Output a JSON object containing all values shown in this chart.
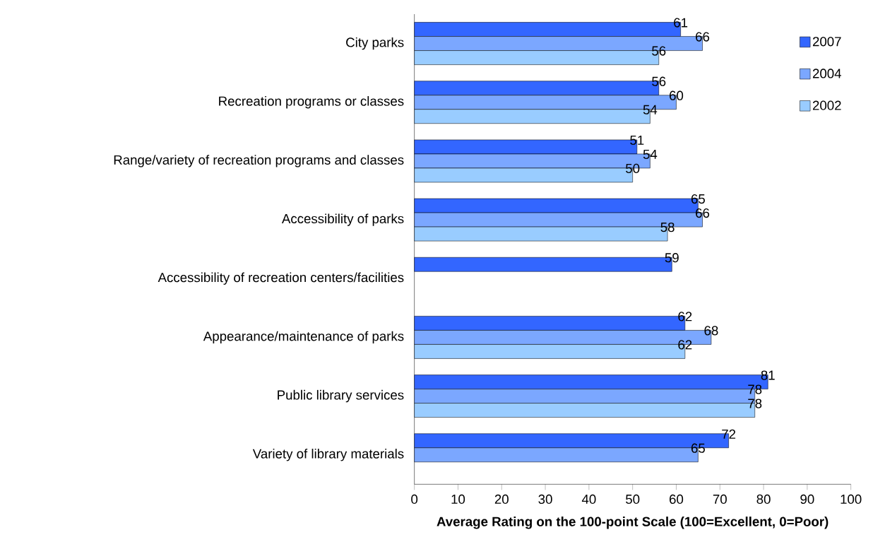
{
  "chart_data": {
    "type": "bar",
    "orientation": "horizontal",
    "xlabel": "Average Rating on the 100-point Scale (100=Excellent, 0=Poor)",
    "categories": [
      "City parks",
      "Recreation programs or classes",
      "Range/variety of recreation programs and classes",
      "Accessibility of parks",
      "Accessibility of recreation centers/facilities",
      "Appearance/maintenance of parks",
      "Public library services",
      "Variety of library materials"
    ],
    "series": [
      {
        "name": "2007",
        "color": "#3366ff",
        "values": [
          61,
          56,
          51,
          65,
          59,
          62,
          81,
          72
        ]
      },
      {
        "name": "2004",
        "color": "#7ba7ff",
        "values": [
          66,
          60,
          54,
          66,
          null,
          68,
          78,
          65
        ]
      },
      {
        "name": "2002",
        "color": "#99ccff",
        "values": [
          56,
          54,
          50,
          58,
          null,
          62,
          78,
          null
        ]
      }
    ],
    "xlim": [
      0,
      100
    ],
    "xticks": [
      0,
      10,
      20,
      30,
      40,
      50,
      60,
      70,
      80,
      90,
      100
    ],
    "data_labels": true,
    "legend": "top right",
    "grid": false
  }
}
